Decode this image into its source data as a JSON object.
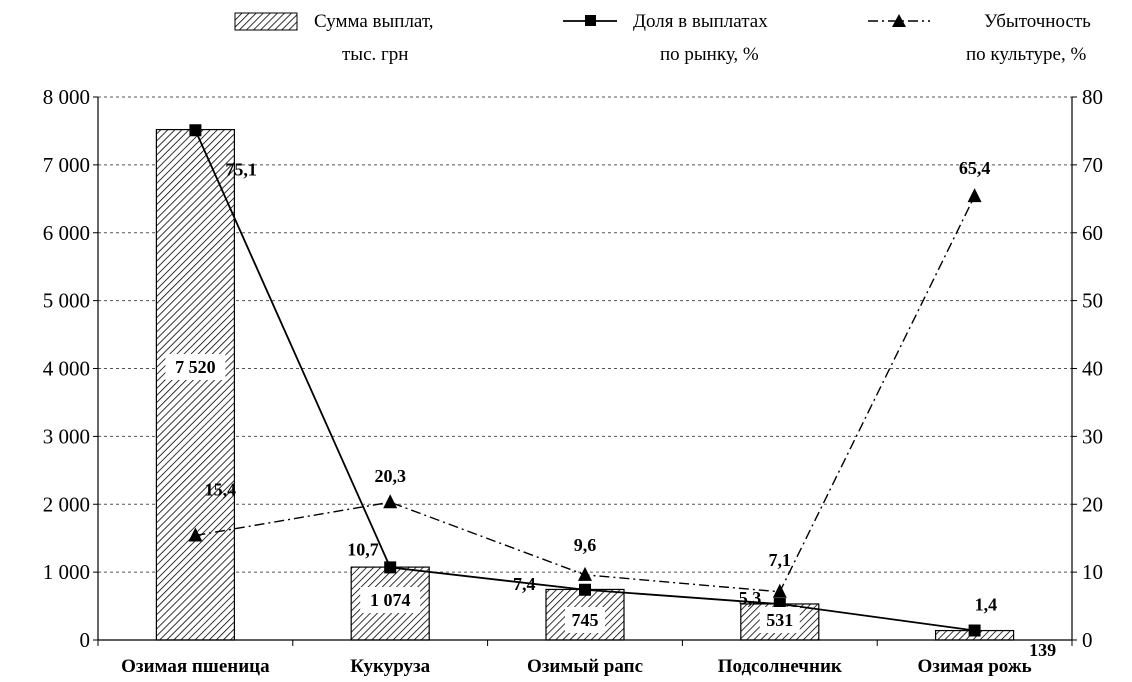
{
  "chart_data": {
    "type": "bar",
    "categories": [
      "Озимая пшеница",
      "Кукуруза",
      "Озимый рапс",
      "Подсолнечник",
      "Озимая рожь"
    ],
    "y_left": {
      "ylim": [
        0,
        8000
      ],
      "ticks": [
        "0",
        "1 000",
        "2 000",
        "3 000",
        "4 000",
        "5 000",
        "6 000",
        "7 000",
        "8 000"
      ]
    },
    "y_right": {
      "ylim": [
        0,
        80
      ],
      "ticks": [
        "0",
        "10",
        "20",
        "30",
        "40",
        "50",
        "60",
        "70",
        "80"
      ]
    },
    "grid": "horizontal dashed",
    "legend_position": "top",
    "series": [
      {
        "name_lines": [
          "Сумма выплат,",
          "тыс. грн"
        ],
        "chart": "bar",
        "axis": "left",
        "style": "hatched",
        "values": [
          7520,
          1074,
          745,
          531,
          139
        ],
        "labels": [
          "7 520",
          "1 074",
          "745",
          "531",
          "139"
        ]
      },
      {
        "name_lines": [
          "Доля в выплатах",
          "по рынку, %"
        ],
        "chart": "line",
        "axis": "right",
        "style": "solid",
        "marker": "square",
        "values": [
          75.1,
          10.7,
          7.4,
          5.3,
          1.4
        ],
        "labels": [
          "75,1",
          "10,7",
          "7,4",
          "5,3",
          "1,4"
        ]
      },
      {
        "name_lines": [
          "Убыточность",
          "по культуре, %"
        ],
        "chart": "line",
        "axis": "right",
        "style": "dash-dot",
        "marker": "triangle",
        "values": [
          15.4,
          20.3,
          9.6,
          7.1,
          65.4
        ],
        "labels": [
          "15,4",
          "20,3",
          "9,6",
          "7,1",
          "65,4"
        ]
      }
    ]
  }
}
